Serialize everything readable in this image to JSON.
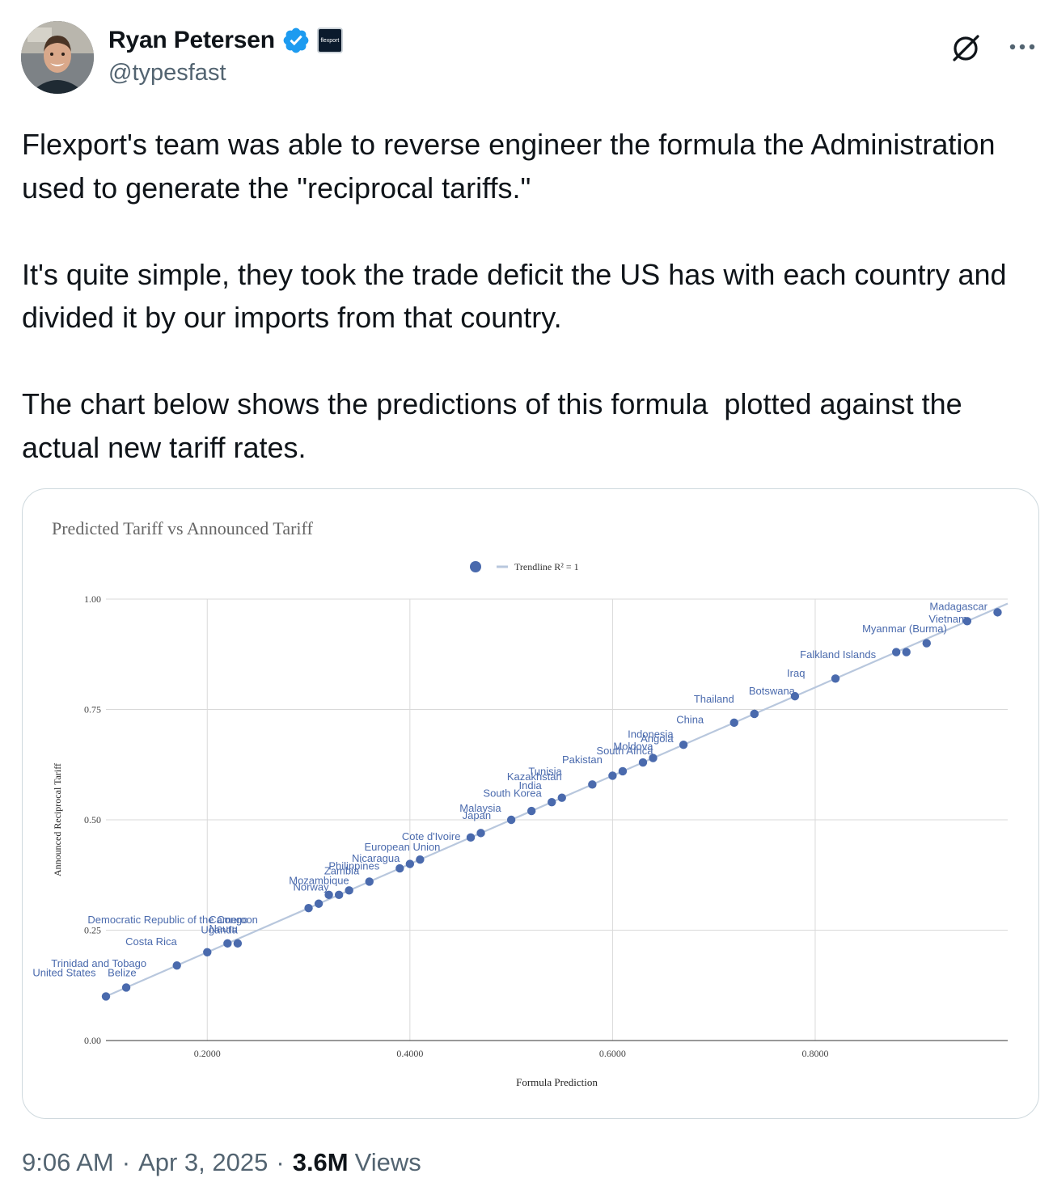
{
  "author": {
    "name": "Ryan Petersen",
    "handle": "@typesfast",
    "affiliation_label": "flexport",
    "avatar_icon": "user-avatar",
    "verified_color": "#1d9bf0"
  },
  "tweet": {
    "paragraphs": [
      "Flexport's team was able to reverse engineer the formula the Administration used to generate the \"reciprocal tariffs.\"",
      "It's quite simple, they took the trade deficit the US has with each country and divided it by our imports from that country.",
      "The chart below shows the predictions of this formula  plotted against the actual new tariff rates."
    ]
  },
  "footer": {
    "time": "9:06 AM",
    "date": "Apr 3, 2025",
    "views_count": "3.6M",
    "views_label": "Views"
  },
  "chart_data": {
    "type": "scatter",
    "title": "Predicted Tariff vs Announced Tariff",
    "xlabel": "Formula Prediction",
    "ylabel": "Announced Reciprocal Tariff",
    "xlim": [
      0.1,
      0.99
    ],
    "ylim": [
      0,
      1
    ],
    "x_ticks": [
      "0.2000",
      "0.4000",
      "0.6000",
      "0.8000"
    ],
    "x_tick_values": [
      0.2,
      0.4,
      0.6,
      0.8
    ],
    "y_ticks": [
      "0.00",
      "0.25",
      "0.50",
      "0.75",
      "1.00"
    ],
    "y_tick_values": [
      0,
      0.25,
      0.5,
      0.75,
      1
    ],
    "grid": true,
    "legend": {
      "position": "top-center",
      "trend_label": "Trendline R² = 1"
    },
    "point_color": "#4a6aad",
    "trend_color": "#b8c7dd",
    "points": [
      {
        "x": 0.1,
        "y": 0.1
      },
      {
        "x": 0.12,
        "y": 0.12
      },
      {
        "x": 0.17,
        "y": 0.17
      },
      {
        "x": 0.2,
        "y": 0.2
      },
      {
        "x": 0.22,
        "y": 0.22
      },
      {
        "x": 0.23,
        "y": 0.22
      },
      {
        "x": 0.3,
        "y": 0.3
      },
      {
        "x": 0.31,
        "y": 0.31
      },
      {
        "x": 0.32,
        "y": 0.33
      },
      {
        "x": 0.33,
        "y": 0.33
      },
      {
        "x": 0.34,
        "y": 0.34
      },
      {
        "x": 0.36,
        "y": 0.36
      },
      {
        "x": 0.39,
        "y": 0.39
      },
      {
        "x": 0.4,
        "y": 0.4
      },
      {
        "x": 0.41,
        "y": 0.41
      },
      {
        "x": 0.46,
        "y": 0.46
      },
      {
        "x": 0.47,
        "y": 0.47
      },
      {
        "x": 0.5,
        "y": 0.5
      },
      {
        "x": 0.52,
        "y": 0.52
      },
      {
        "x": 0.54,
        "y": 0.54
      },
      {
        "x": 0.55,
        "y": 0.55
      },
      {
        "x": 0.58,
        "y": 0.58
      },
      {
        "x": 0.6,
        "y": 0.6
      },
      {
        "x": 0.61,
        "y": 0.61
      },
      {
        "x": 0.63,
        "y": 0.63
      },
      {
        "x": 0.64,
        "y": 0.64
      },
      {
        "x": 0.67,
        "y": 0.67
      },
      {
        "x": 0.72,
        "y": 0.72
      },
      {
        "x": 0.74,
        "y": 0.74
      },
      {
        "x": 0.74,
        "y": 0.74
      },
      {
        "x": 0.78,
        "y": 0.78
      },
      {
        "x": 0.82,
        "y": 0.82
      },
      {
        "x": 0.88,
        "y": 0.88
      },
      {
        "x": 0.89,
        "y": 0.88
      },
      {
        "x": 0.91,
        "y": 0.9
      },
      {
        "x": 0.95,
        "y": 0.95
      },
      {
        "x": 0.98,
        "y": 0.97
      }
    ],
    "annotations": [
      {
        "label": "Madagascar",
        "x": 0.97,
        "y": 0.975
      },
      {
        "label": "Vietnam",
        "x": 0.95,
        "y": 0.947
      },
      {
        "label": "Myanmar (Burma)",
        "x": 0.93,
        "y": 0.925
      },
      {
        "label": "Falkland Islands",
        "x": 0.86,
        "y": 0.866
      },
      {
        "label": "Iraq",
        "x": 0.79,
        "y": 0.824
      },
      {
        "label": "Botswana",
        "x": 0.78,
        "y": 0.784
      },
      {
        "label": "Thailand",
        "x": 0.72,
        "y": 0.766
      },
      {
        "label": "China",
        "x": 0.69,
        "y": 0.719
      },
      {
        "label": "Indonesia",
        "x": 0.66,
        "y": 0.686
      },
      {
        "label": "Angola",
        "x": 0.66,
        "y": 0.676
      },
      {
        "label": "Moldova",
        "x": 0.64,
        "y": 0.658
      },
      {
        "label": "South Africa",
        "x": 0.64,
        "y": 0.648
      },
      {
        "label": "Pakistan",
        "x": 0.59,
        "y": 0.628
      },
      {
        "label": "Tunisia",
        "x": 0.55,
        "y": 0.602
      },
      {
        "label": "Kazakhstan",
        "x": 0.55,
        "y": 0.59
      },
      {
        "label": "India",
        "x": 0.53,
        "y": 0.57
      },
      {
        "label": "South Korea",
        "x": 0.53,
        "y": 0.552
      },
      {
        "label": "Malaysia",
        "x": 0.49,
        "y": 0.518
      },
      {
        "label": "Japan",
        "x": 0.48,
        "y": 0.502
      },
      {
        "label": "Cote d'Ivoire",
        "x": 0.45,
        "y": 0.454
      },
      {
        "label": "European Union",
        "x": 0.43,
        "y": 0.43
      },
      {
        "label": "Nicaragua",
        "x": 0.39,
        "y": 0.405
      },
      {
        "label": "Philippines",
        "x": 0.37,
        "y": 0.387
      },
      {
        "label": "Zambia",
        "x": 0.35,
        "y": 0.376
      },
      {
        "label": "Mozambique",
        "x": 0.34,
        "y": 0.354
      },
      {
        "label": "Norway",
        "x": 0.32,
        "y": 0.34
      },
      {
        "label": "Democratic Republic of the Congo",
        "x": 0.24,
        "y": 0.266
      },
      {
        "label": "Cameroon",
        "x": 0.25,
        "y": 0.266
      },
      {
        "label": "Nauru",
        "x": 0.23,
        "y": 0.245
      },
      {
        "label": "Uganda",
        "x": 0.23,
        "y": 0.243
      },
      {
        "label": "Costa Rica",
        "x": 0.17,
        "y": 0.216
      },
      {
        "label": "Trinidad and Tobago",
        "x": 0.14,
        "y": 0.167
      },
      {
        "label": "United States",
        "x": 0.09,
        "y": 0.146
      },
      {
        "label": "Belize",
        "x": 0.13,
        "y": 0.146
      }
    ]
  }
}
